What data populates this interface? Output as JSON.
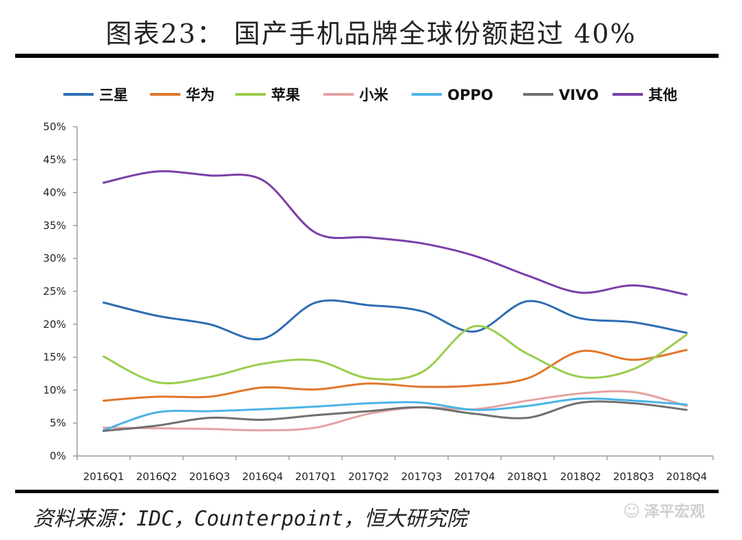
{
  "title": "图表23： 国产手机品牌全球份额超过 40%",
  "source": "资料来源：IDC，Counterpoint，恒大研究院",
  "watermark": "泽平宏观",
  "chart_data": {
    "type": "line",
    "categories": [
      "2016Q1",
      "2016Q2",
      "2016Q3",
      "2016Q4",
      "2017Q1",
      "2017Q2",
      "2017Q3",
      "2017Q4",
      "2018Q1",
      "2018Q2",
      "2018Q3",
      "2018Q4"
    ],
    "ylim": [
      0,
      50
    ],
    "yticks": [
      "0%",
      "5%",
      "10%",
      "15%",
      "20%",
      "25%",
      "30%",
      "35%",
      "40%",
      "45%",
      "50%"
    ],
    "grid": false,
    "legend": "top",
    "series": [
      {
        "name": "三星",
        "color": "#2e6db4",
        "values": [
          23.3,
          21.3,
          20.0,
          17.8,
          23.3,
          22.9,
          22.0,
          18.9,
          23.5,
          20.9,
          20.3,
          18.7
        ]
      },
      {
        "name": "华为",
        "color": "#e0772a",
        "values": [
          8.4,
          9.0,
          9.0,
          10.4,
          10.1,
          11.0,
          10.5,
          10.7,
          11.8,
          15.9,
          14.6,
          16.1
        ]
      },
      {
        "name": "苹果",
        "color": "#9acd4c",
        "values": [
          15.1,
          11.2,
          12.0,
          14.0,
          14.5,
          11.8,
          12.7,
          19.7,
          15.5,
          12.0,
          13.2,
          18.4
        ]
      },
      {
        "name": "小米",
        "color": "#e3a3a3",
        "values": [
          4.3,
          4.2,
          4.1,
          3.9,
          4.3,
          6.4,
          7.4,
          7.1,
          8.4,
          9.5,
          9.7,
          7.6
        ]
      },
      {
        "name": "OPPO",
        "color": "#4ab4e6",
        "values": [
          3.9,
          6.6,
          6.8,
          7.1,
          7.5,
          8.0,
          8.1,
          7.0,
          7.6,
          8.7,
          8.4,
          7.8
        ]
      },
      {
        "name": "VIVO",
        "color": "#707070",
        "values": [
          3.8,
          4.6,
          5.8,
          5.5,
          6.2,
          6.8,
          7.4,
          6.4,
          5.8,
          8.1,
          8.0,
          7.0
        ]
      },
      {
        "name": "其他",
        "color": "#7b3fa8",
        "values": [
          41.5,
          43.2,
          42.6,
          41.9,
          33.9,
          33.2,
          32.3,
          30.4,
          27.4,
          24.8,
          25.9,
          24.5
        ]
      }
    ]
  }
}
